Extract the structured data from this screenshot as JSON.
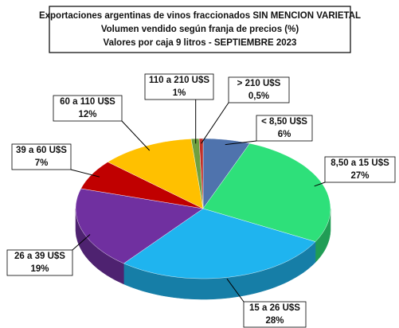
{
  "chart_data": {
    "type": "pie",
    "title": [
      "Exportaciones argentinas de vinos fraccionados SIN MENCION VARIETAL",
      "Volumen vendido según franja de precios (%)",
      "Valores por caja 9 litros -  SEPTIEMBRE 2023"
    ],
    "categories": [
      "< 8,50 U$S",
      "8,50 a 15 U$S",
      "15 a 26 U$S",
      "26 a 39 U$S",
      "39 a 60 U$S",
      "60 a 110 U$S",
      "110 a 210 U$S",
      "> 210 U$S"
    ],
    "values": [
      6,
      27,
      28,
      19,
      7,
      12,
      1,
      0.5
    ],
    "value_labels": [
      "6%",
      "27%",
      "28%",
      "19%",
      "7%",
      "12%",
      "1%",
      "0,5%"
    ],
    "colors": [
      "#4f73ad",
      "#2ee07a",
      "#1fb4ef",
      "#7030a0",
      "#c00000",
      "#ffc000",
      "#70a040",
      "#c0302a"
    ]
  }
}
